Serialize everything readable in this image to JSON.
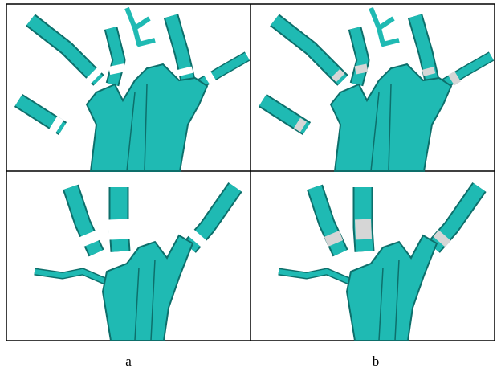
{
  "labels": [
    "a",
    "b"
  ]
}
